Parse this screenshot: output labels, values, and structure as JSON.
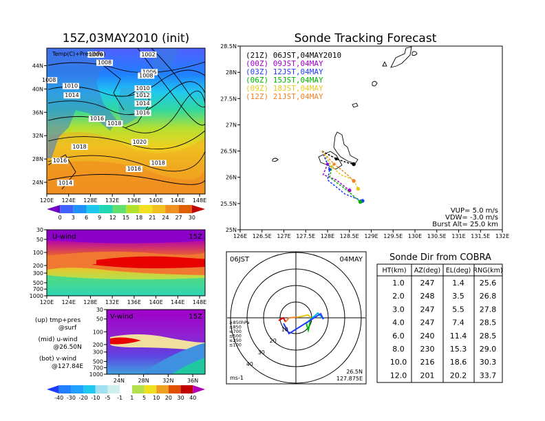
{
  "left_panel": {
    "title": "15Z,03MAY2010 (init)",
    "map_label": "Temp(C)+Pres(hPa)",
    "lat_ticks": [
      "44N",
      "40N",
      "36N",
      "32N",
      "28N",
      "24N"
    ],
    "lon_ticks": [
      "120E",
      "124E",
      "128E",
      "132E",
      "136E",
      "140E",
      "144E",
      "148E"
    ],
    "isobars": [
      {
        "label": "1006",
        "lon": 129.0,
        "lat": 45.6
      },
      {
        "label": "1008",
        "lon": 130.6,
        "lat": 44.2
      },
      {
        "label": "1002",
        "lon": 138.6,
        "lat": 45.6
      },
      {
        "label": "1006",
        "lon": 138.8,
        "lat": 42.6
      },
      {
        "label": "1008",
        "lon": 138.2,
        "lat": 42.0
      },
      {
        "label": "1008",
        "lon": 120.4,
        "lat": 41.2
      },
      {
        "label": "1010",
        "lon": 124.4,
        "lat": 40.2
      },
      {
        "label": "1014",
        "lon": 124.6,
        "lat": 38.6
      },
      {
        "label": "1010",
        "lon": 137.6,
        "lat": 39.8
      },
      {
        "label": "1012",
        "lon": 137.6,
        "lat": 38.6
      },
      {
        "label": "1014",
        "lon": 137.6,
        "lat": 37.2
      },
      {
        "label": "1016",
        "lon": 137.6,
        "lat": 35.6
      },
      {
        "label": "1016",
        "lon": 129.2,
        "lat": 34.6
      },
      {
        "label": "1018",
        "lon": 132.4,
        "lat": 33.8
      },
      {
        "label": "1020",
        "lon": 137.0,
        "lat": 30.6
      },
      {
        "label": "1018",
        "lon": 126.0,
        "lat": 29.8
      },
      {
        "label": "1016",
        "lon": 122.4,
        "lat": 27.4
      },
      {
        "label": "1018",
        "lon": 140.4,
        "lat": 27.0
      },
      {
        "label": "1016",
        "lon": 136.0,
        "lat": 26.0
      },
      {
        "label": "1014",
        "lon": 123.4,
        "lat": 23.6
      }
    ],
    "temp_colorbar": [
      "0",
      "3",
      "6",
      "9",
      "12",
      "15",
      "18",
      "21",
      "24",
      "27",
      "30"
    ],
    "u_wind_label": "U-wind",
    "u_wind_time": "15Z",
    "v_wind_label": "V-wind",
    "v_wind_time": "15Z",
    "pres_ticks": [
      "30",
      "50",
      "100",
      "200",
      "300",
      "500",
      "700",
      "1000"
    ],
    "v_lat_ticks": [
      "24N",
      "28N",
      "32N",
      "36N"
    ],
    "wind_colorbar": [
      "-40",
      "-30",
      "-20",
      "-10",
      "-5",
      "-1",
      "1",
      "5",
      "10",
      "20",
      "30",
      "40"
    ],
    "notes": [
      {
        "left": "(up) tmp+pres",
        "right": "@surf"
      },
      {
        "left": "(mid) u-wind",
        "right": "@26.50N"
      },
      {
        "left": "(bot) v-wind",
        "right": "@127.84E"
      }
    ]
  },
  "forecast": {
    "title": "Sonde Tracking Forecast",
    "lat_ticks": [
      "28.5N",
      "28N",
      "27.5N",
      "27N",
      "26.5N",
      "26N",
      "25.5N",
      "25N"
    ],
    "lon_ticks": [
      "126E",
      "126.5E",
      "127E",
      "127.5E",
      "128E",
      "128.5E",
      "129E",
      "129.5E",
      "130E",
      "130.5E",
      "131E",
      "131.5E",
      "132E"
    ],
    "legend": [
      {
        "text": "(21Z) 06JST,04MAY2010",
        "color": "#000000"
      },
      {
        "text": "(00Z) 09JST,04MAY",
        "color": "#a000c8"
      },
      {
        "text": "(03Z) 12JST,04MAY",
        "color": "#1e3cff"
      },
      {
        "text": "(06Z) 15JST,04MAY",
        "color": "#00b400"
      },
      {
        "text": "(09Z) 18JST,04MAY",
        "color": "#e6c81e"
      },
      {
        "text": "(12Z) 21JST,04MAY",
        "color": "#f08228"
      }
    ],
    "params": [
      "VUP= 5.0 m/s",
      "VDW= -3.0 m/s",
      "Burst Alt= 25.0 km"
    ],
    "tracks": [
      {
        "color": "#000000",
        "pts": [
          [
            127.875,
            26.5
          ],
          [
            128.2,
            26.35
          ],
          [
            128.45,
            26.28
          ],
          [
            128.6,
            26.25
          ]
        ]
      },
      {
        "color": "#a000c8",
        "pts": [
          [
            127.875,
            26.5
          ],
          [
            128.0,
            26.25
          ],
          [
            127.9,
            26.05
          ],
          [
            128.2,
            25.95
          ],
          [
            128.5,
            25.75
          ]
        ]
      },
      {
        "color": "#1e3cff",
        "pts": [
          [
            127.875,
            26.5
          ],
          [
            128.05,
            26.15
          ],
          [
            128.0,
            25.95
          ],
          [
            128.4,
            25.68
          ],
          [
            128.8,
            25.55
          ]
        ]
      },
      {
        "color": "#00b400",
        "pts": [
          [
            127.875,
            26.5
          ],
          [
            128.1,
            26.2
          ],
          [
            128.05,
            26.0
          ],
          [
            128.45,
            25.75
          ],
          [
            128.75,
            25.53
          ]
        ]
      },
      {
        "color": "#e6c81e",
        "pts": [
          [
            127.875,
            26.5
          ],
          [
            128.1,
            26.2
          ],
          [
            128.3,
            26.05
          ],
          [
            128.6,
            25.95
          ],
          [
            128.7,
            25.78
          ]
        ]
      },
      {
        "color": "#f08228",
        "pts": [
          [
            127.875,
            26.5
          ],
          [
            128.15,
            26.25
          ],
          [
            128.35,
            26.12
          ],
          [
            128.45,
            26.05
          ],
          [
            128.6,
            25.93
          ]
        ]
      }
    ]
  },
  "hodograph": {
    "time": "06JST",
    "date": "04MAY",
    "levels": [
      {
        "text": "≥850hPa",
        "color": "#e60000"
      },
      {
        "text": "≤850",
        "color": "#f08228"
      },
      {
        "text": "≤700",
        "color": "#e6c81e"
      },
      {
        "text": "≤500",
        "color": "#00b400"
      },
      {
        "text": "≤250",
        "color": "#00b4e6"
      },
      {
        "text": "≤100",
        "color": "#1e3cff"
      }
    ],
    "ring_labels": [
      "10",
      "20",
      "30",
      "40"
    ],
    "unit": "ms-1",
    "lat": "26.5N",
    "lon": "127.875E"
  },
  "table": {
    "title": "Sonde Dir from COBRA",
    "headers": [
      "HT(km)",
      "AZ(deg)",
      "EL(deg)",
      "RNG(km)"
    ],
    "rows": [
      [
        "1.0",
        "247",
        "1.4",
        "25.6"
      ],
      [
        "2.0",
        "248",
        "3.5",
        "26.8"
      ],
      [
        "3.0",
        "247",
        "5.5",
        "27.8"
      ],
      [
        "4.0",
        "247",
        "7.4",
        "28.5"
      ],
      [
        "6.0",
        "240",
        "11.4",
        "28.5"
      ],
      [
        "8.0",
        "230",
        "15.3",
        "29.0"
      ],
      [
        "10.0",
        "216",
        "18.6",
        "30.3"
      ],
      [
        "12.0",
        "201",
        "20.2",
        "33.7"
      ]
    ]
  },
  "chart_data": [
    {
      "type": "heatmap",
      "title": "15Z,03MAY2010 (init)",
      "xlabel": "",
      "ylabel": "",
      "xlim": [
        120,
        149
      ],
      "ylim": [
        22,
        47
      ],
      "colorbar_levels": [
        0,
        3,
        6,
        9,
        12,
        15,
        18,
        21,
        24,
        27,
        30
      ]
    },
    {
      "type": "heatmap",
      "title": "U-wind 15Z",
      "xlim": [
        120,
        149
      ],
      "ylim": [
        1000,
        30
      ],
      "yscale": "log"
    },
    {
      "type": "heatmap",
      "title": "V-wind 15Z",
      "xlim": [
        22,
        38
      ],
      "ylim": [
        1000,
        30
      ],
      "yscale": "log",
      "colorbar_levels": [
        -40,
        -30,
        -20,
        -10,
        -5,
        -1,
        1,
        5,
        10,
        20,
        30,
        40
      ]
    },
    {
      "type": "line",
      "title": "Sonde Tracking Forecast",
      "xlim": [
        126,
        132
      ],
      "ylim": [
        25,
        28.5
      ],
      "series": [
        {
          "name": "(21Z) 06JST,04MAY2010",
          "x": [
            127.875,
            128.2,
            128.45,
            128.6
          ],
          "y": [
            26.5,
            26.35,
            26.28,
            26.25
          ]
        },
        {
          "name": "(00Z) 09JST,04MAY",
          "x": [
            127.875,
            128.0,
            127.9,
            128.2,
            128.5
          ],
          "y": [
            26.5,
            26.25,
            26.05,
            25.95,
            25.75
          ]
        },
        {
          "name": "(03Z) 12JST,04MAY",
          "x": [
            127.875,
            128.05,
            128.0,
            128.4,
            128.8
          ],
          "y": [
            26.5,
            26.15,
            25.95,
            25.68,
            25.55
          ]
        },
        {
          "name": "(06Z) 15JST,04MAY",
          "x": [
            127.875,
            128.1,
            128.05,
            128.45,
            128.75
          ],
          "y": [
            26.5,
            26.2,
            26.0,
            25.75,
            25.53
          ]
        },
        {
          "name": "(09Z) 18JST,04MAY",
          "x": [
            127.875,
            128.1,
            128.3,
            128.6,
            128.7
          ],
          "y": [
            26.5,
            26.2,
            26.05,
            25.95,
            25.78
          ]
        },
        {
          "name": "(12Z) 21JST,04MAY",
          "x": [
            127.875,
            128.15,
            128.35,
            128.45,
            128.6
          ],
          "y": [
            26.5,
            26.25,
            26.12,
            26.05,
            25.93
          ]
        }
      ]
    },
    {
      "type": "table",
      "title": "Sonde Dir from COBRA",
      "columns": [
        "HT(km)",
        "AZ(deg)",
        "EL(deg)",
        "RNG(km)"
      ],
      "rows": [
        [
          1.0,
          247,
          1.4,
          25.6
        ],
        [
          2.0,
          248,
          3.5,
          26.8
        ],
        [
          3.0,
          247,
          5.5,
          27.8
        ],
        [
          4.0,
          247,
          7.4,
          28.5
        ],
        [
          6.0,
          240,
          11.4,
          28.5
        ],
        [
          8.0,
          230,
          15.3,
          29.0
        ],
        [
          10.0,
          216,
          18.6,
          30.3
        ],
        [
          12.0,
          201,
          20.2,
          33.7
        ]
      ]
    }
  ]
}
